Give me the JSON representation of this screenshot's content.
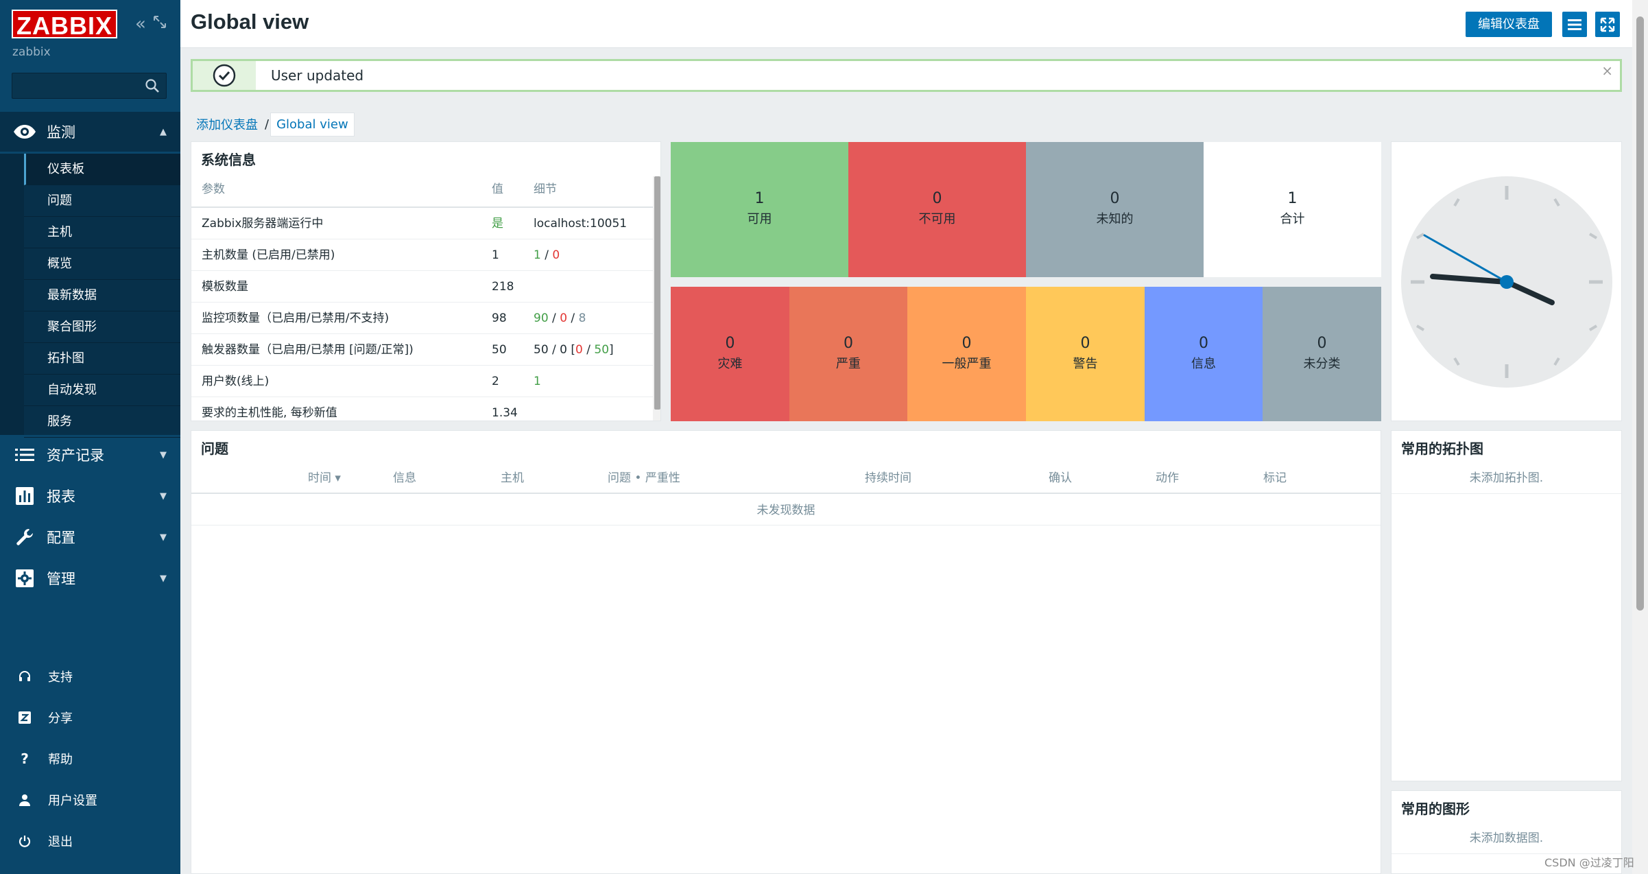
{
  "sidebar": {
    "logo": "ZABBIX",
    "server_name": "zabbix",
    "search_placeholder": "",
    "main_menu": [
      {
        "label": "监测",
        "icon": "eye-icon",
        "expanded": true
      },
      {
        "label": "资产记录",
        "icon": "list-icon"
      },
      {
        "label": "报表",
        "icon": "bar-chart-icon"
      },
      {
        "label": "配置",
        "icon": "wrench-icon"
      },
      {
        "label": "管理",
        "icon": "gear-icon"
      }
    ],
    "submenu": [
      "仪表板",
      "问题",
      "主机",
      "概览",
      "最新数据",
      "聚合图形",
      "拓扑图",
      "自动发现",
      "服务"
    ],
    "submenu_selected": "仪表板",
    "bottom_menu": [
      {
        "label": "支持",
        "icon": "headset-icon"
      },
      {
        "label": "分享",
        "icon": "share-z-icon"
      },
      {
        "label": "帮助",
        "icon": "question-icon"
      },
      {
        "label": "用户设置",
        "icon": "user-icon"
      },
      {
        "label": "退出",
        "icon": "power-icon"
      }
    ]
  },
  "header": {
    "title": "Global view",
    "edit_button": "编辑仪表盘"
  },
  "message": {
    "text": "User updated",
    "close": "×"
  },
  "breadcrumb": {
    "parent": "添加仪表盘",
    "separator": "/",
    "current": "Global view"
  },
  "system_info": {
    "title": "系统信息",
    "columns": [
      "参数",
      "值",
      "细节"
    ],
    "rows": [
      {
        "param": "Zabbix服务器端运行中",
        "value": "是",
        "detail": "localhost:10051"
      },
      {
        "param": "主机数量 (已启用/已禁用)",
        "value": "1",
        "detail_parts": [
          "1",
          " / ",
          "0"
        ]
      },
      {
        "param": "模板数量",
        "value": "218",
        "detail": ""
      },
      {
        "param": "监控项数量（已启用/已禁用/不支持)",
        "value": "98",
        "detail_parts": [
          "90",
          " / ",
          "0",
          " / ",
          "8"
        ]
      },
      {
        "param": "触发器数量（已启用/已禁用 [问题/正常])",
        "value": "50",
        "detail_parts": [
          "50 / 0 [",
          "0",
          " / ",
          "50",
          "]"
        ]
      },
      {
        "param": "用户数(线上)",
        "value": "2",
        "detail": "1"
      },
      {
        "param": "要求的主机性能, 每秒新值",
        "value": "1.34",
        "detail": ""
      }
    ]
  },
  "host_availability": [
    {
      "count": "1",
      "label": "可用",
      "color": "#86cc89"
    },
    {
      "count": "0",
      "label": "不可用",
      "color": "#e45959"
    },
    {
      "count": "0",
      "label": "未知的",
      "color": "#97aab3"
    },
    {
      "count": "1",
      "label": "合计",
      "color": "#ffffff"
    }
  ],
  "problems_by_severity": [
    {
      "count": "0",
      "label": "灾难",
      "color": "#e45959"
    },
    {
      "count": "0",
      "label": "严重",
      "color": "#e97659"
    },
    {
      "count": "0",
      "label": "一般严重",
      "color": "#ffa059"
    },
    {
      "count": "0",
      "label": "警告",
      "color": "#ffc859"
    },
    {
      "count": "0",
      "label": "信息",
      "color": "#7499ff"
    },
    {
      "count": "0",
      "label": "未分类",
      "color": "#97aab3"
    }
  ],
  "problems": {
    "title": "问题",
    "columns": [
      "时间 ▾",
      "信息",
      "主机",
      "问题 • 严重性",
      "持续时间",
      "确认",
      "动作",
      "标记"
    ],
    "empty": "未发现数据"
  },
  "fav_maps": {
    "title": "常用的拓扑图",
    "empty": "未添加拓扑图."
  },
  "fav_graphs": {
    "title": "常用的图形",
    "empty": "未添加数据图."
  },
  "watermark": "CSDN @过凌丁阳",
  "colors": {
    "sidebar_bg": "#0a466a",
    "accent": "#0275b8",
    "logo_red": "#d40000"
  }
}
